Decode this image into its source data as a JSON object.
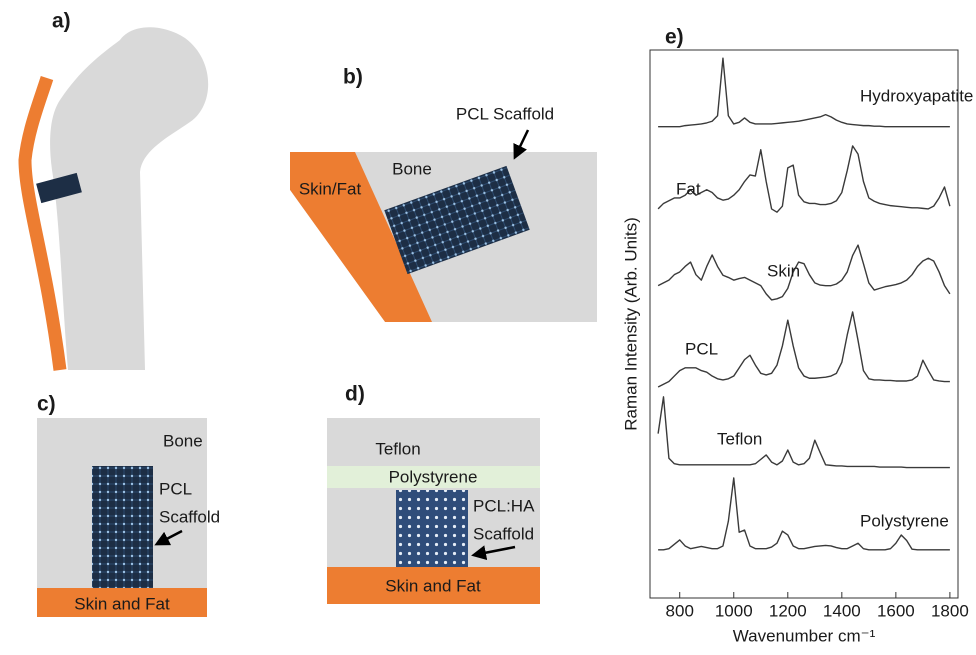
{
  "panels": [
    {
      "label": "a)"
    },
    {
      "label": "b)",
      "texts": [
        "PCL Scaffold",
        "Bone",
        "Skin/Fat"
      ]
    },
    {
      "label": "c)",
      "texts": [
        "Bone",
        "PCL",
        "Scaffold",
        "Skin and Fat"
      ]
    },
    {
      "label": "d)",
      "texts": [
        "Teflon",
        "Polystyrene",
        "PCL:HA",
        "Scaffold",
        "Skin and Fat"
      ]
    }
  ],
  "chart_data": {
    "type": "line",
    "title": "e)",
    "x_label": "Wavenumber cm⁻¹",
    "y_label": "Raman Intensity (Arb. Units)",
    "x": [
      720,
      740,
      760,
      780,
      800,
      820,
      840,
      860,
      880,
      900,
      920,
      940,
      960,
      980,
      1000,
      1020,
      1040,
      1060,
      1080,
      1100,
      1120,
      1140,
      1160,
      1180,
      1200,
      1220,
      1240,
      1260,
      1280,
      1300,
      1320,
      1340,
      1360,
      1380,
      1400,
      1420,
      1440,
      1460,
      1480,
      1500,
      1520,
      1540,
      1560,
      1580,
      1600,
      1620,
      1640,
      1660,
      1680,
      1700,
      1720,
      1740,
      1760,
      1780,
      1800
    ],
    "xlim": [
      690,
      1830
    ],
    "xticks": [
      800,
      1000,
      1200,
      1400,
      1600,
      1800
    ],
    "ylim": [
      0,
      100
    ],
    "series": [
      {
        "name": "Hydroxyapatite",
        "color": "#3a3a3a",
        "values": [
          86,
          86,
          86,
          86,
          86,
          86.2,
          86.3,
          86.4,
          86.5,
          86.7,
          87,
          88,
          98.5,
          88,
          86.5,
          86.8,
          87.6,
          86.8,
          86.5,
          86.5,
          86.5,
          86.5,
          86.6,
          86.7,
          86.8,
          86.9,
          87,
          87.2,
          87.4,
          87.6,
          87.8,
          88.2,
          87.8,
          87.2,
          86.8,
          86.5,
          86.4,
          86.3,
          86.2,
          86.2,
          86.1,
          86.1,
          86,
          86,
          86,
          86,
          86,
          86,
          86,
          86,
          86,
          86,
          86,
          86,
          86
        ]
      },
      {
        "name": "Fat",
        "color": "#3a3a3a",
        "values": [
          71,
          72,
          72.5,
          73,
          73,
          73.5,
          74.5,
          73.5,
          74,
          74.5,
          74,
          73,
          72.6,
          72.8,
          73.5,
          74.5,
          76,
          77.2,
          77,
          81.8,
          76,
          71,
          70.4,
          71.5,
          78.5,
          79,
          73.5,
          72.3,
          72,
          72,
          71.8,
          71.8,
          72,
          72.5,
          74,
          78,
          82.5,
          81,
          76,
          73,
          72.4,
          72,
          71.8,
          71.6,
          71.5,
          71.4,
          71.3,
          71.2,
          71.2,
          71.1,
          71,
          71.5,
          73,
          75,
          71.5
        ]
      },
      {
        "name": "Skin",
        "color": "#3a3a3a",
        "values": [
          57,
          57.5,
          58,
          59,
          59.5,
          60.5,
          61.3,
          59,
          58,
          60.5,
          62.6,
          60.5,
          58.9,
          58.5,
          58,
          58.3,
          58.5,
          58,
          57.5,
          57,
          55.5,
          54.4,
          54.6,
          55,
          56.5,
          59.5,
          61.3,
          61,
          59,
          57.5,
          57.1,
          57,
          57,
          57.3,
          58,
          59.5,
          62.5,
          64.4,
          61,
          57.5,
          56.2,
          56.5,
          56.8,
          57,
          57.2,
          57.5,
          58,
          59,
          60.5,
          61.5,
          62,
          61.5,
          59.5,
          57,
          55.5
        ]
      },
      {
        "name": "PCL",
        "color": "#3a3a3a",
        "values": [
          38.5,
          39,
          39.5,
          40.5,
          41.5,
          42,
          42,
          42,
          41.5,
          41.2,
          40.5,
          40,
          39.8,
          40,
          40.5,
          42,
          43.5,
          44.3,
          42.5,
          41,
          40.7,
          41,
          42.5,
          46,
          50.7,
          46,
          42,
          40.5,
          40.1,
          40.1,
          40.2,
          40.3,
          40.5,
          41,
          43,
          48,
          52.2,
          47,
          41.5,
          40,
          39.8,
          39.8,
          39.7,
          39.7,
          39.6,
          39.6,
          39.6,
          39.8,
          40.5,
          43.4,
          41.5,
          39.8,
          39.6,
          39.5,
          39.5
        ]
      },
      {
        "name": "Teflon",
        "color": "#3a3a3a",
        "values": [
          30,
          36.7,
          25.5,
          24.5,
          24.3,
          24.3,
          24.3,
          24.3,
          24.3,
          24.3,
          24.3,
          24.3,
          24.3,
          24.3,
          24.3,
          24.3,
          24.3,
          24.3,
          24.5,
          25.3,
          26.1,
          24.8,
          24.3,
          25,
          27,
          24.8,
          24.3,
          24.5,
          25.5,
          28.8,
          26.5,
          24.3,
          24.2,
          24.1,
          24.1,
          24,
          24,
          24,
          24,
          24,
          24,
          23.9,
          23.9,
          23.9,
          23.9,
          23.9,
          23.8,
          23.8,
          23.8,
          23.8,
          23.8,
          23.8,
          23.8,
          23.8,
          23.8
        ]
      },
      {
        "name": "Polystyrene",
        "color": "#3a3a3a",
        "values": [
          8.8,
          8.8,
          9,
          9.8,
          10.6,
          9.5,
          9,
          9.2,
          9.4,
          9.2,
          9,
          9,
          9.5,
          14,
          21.9,
          12,
          12.4,
          9.5,
          9,
          9,
          9,
          9.3,
          10,
          12.2,
          11.5,
          9.5,
          9,
          9,
          9.2,
          9.4,
          9.5,
          9.6,
          9.5,
          9.2,
          9,
          9,
          9.5,
          10,
          9,
          8.8,
          8.8,
          8.8,
          8.8,
          9,
          10,
          11.5,
          10.5,
          8.9,
          8.8,
          8.8,
          8.8,
          8.8,
          8.8,
          8.8,
          8.8
        ]
      }
    ]
  }
}
